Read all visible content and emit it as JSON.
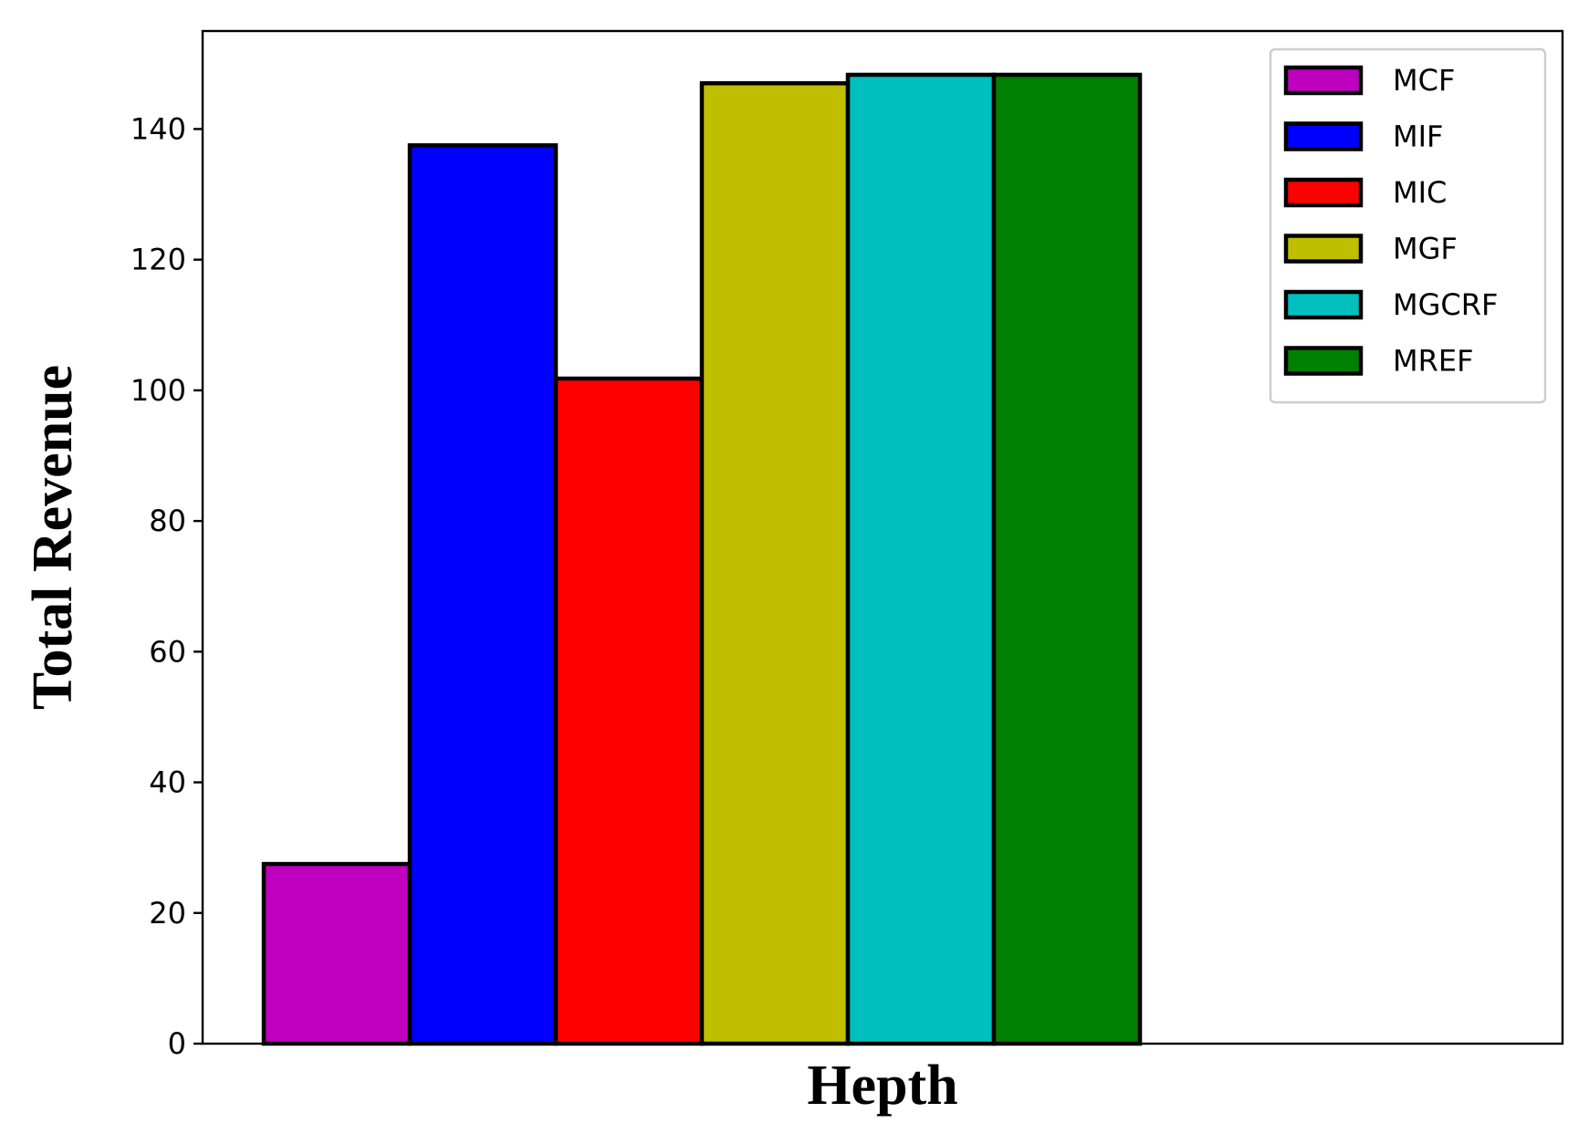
{
  "chart_data": {
    "type": "bar",
    "xlabel": "Hepth",
    "ylabel": "Total Revenue",
    "ylim": [
      0,
      155
    ],
    "yticks": [
      0,
      20,
      40,
      60,
      80,
      100,
      120,
      140
    ],
    "grid": false,
    "legend_position": "top-right",
    "series": [
      {
        "name": "MCF",
        "value": 27.5,
        "color": "#bf00bf"
      },
      {
        "name": "MIF",
        "value": 137.5,
        "color": "#0000ff"
      },
      {
        "name": "MIC",
        "value": 101.8,
        "color": "#ff0000"
      },
      {
        "name": "MGF",
        "value": 147.0,
        "color": "#bfbf00"
      },
      {
        "name": "MGCRF",
        "value": 148.3,
        "color": "#00bfbf"
      },
      {
        "name": "MREF",
        "value": 148.3,
        "color": "#008000"
      }
    ]
  }
}
